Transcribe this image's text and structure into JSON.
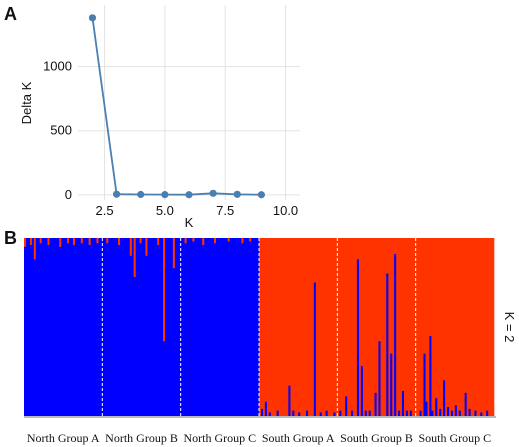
{
  "chart_data": [
    {
      "panel": "A",
      "type": "line",
      "xlabel": "K",
      "ylabel": "Delta K",
      "xlim": [
        1.4,
        10.6
      ],
      "ylim": [
        -40,
        1480
      ],
      "xticks": [
        2.5,
        5.0,
        7.5,
        10.0
      ],
      "xtick_labels": [
        "2.5",
        "5.0",
        "7.5",
        "10.0"
      ],
      "yticks": [
        0,
        500,
        1000
      ],
      "ytick_labels": [
        "0",
        "500",
        "1000"
      ],
      "grid": true,
      "x": [
        2,
        3,
        4,
        5,
        6,
        7,
        8,
        9
      ],
      "values": [
        1380,
        5,
        3,
        2,
        1,
        12,
        4,
        1
      ],
      "color": "#4a7fb0"
    },
    {
      "panel": "B",
      "type": "bar",
      "stacked": true,
      "k_label": "K = 2",
      "colors": {
        "cluster1": "#0000ff",
        "cluster2": "#ff3300"
      },
      "groups": [
        {
          "name": "North Group A",
          "n": 40,
          "dominant": "cluster1",
          "spikes": [
            [
              0,
              0.05
            ],
            [
              3,
              0.04
            ],
            [
              5,
              0.12
            ],
            [
              8,
              0.03
            ],
            [
              12,
              0.04
            ],
            [
              18,
              0.05
            ],
            [
              22,
              0.03
            ],
            [
              25,
              0.04
            ],
            [
              29,
              0.03
            ],
            [
              33,
              0.04
            ],
            [
              37,
              0.03
            ]
          ]
        },
        {
          "name": "North Group B",
          "n": 40,
          "dominant": "cluster1",
          "spikes": [
            [
              2,
              0.03
            ],
            [
              8,
              0.04
            ],
            [
              14,
              0.1
            ],
            [
              16,
              0.22
            ],
            [
              19,
              0.03
            ],
            [
              22,
              0.1
            ],
            [
              28,
              0.04
            ],
            [
              31,
              0.58
            ],
            [
              36,
              0.17
            ]
          ]
        },
        {
          "name": "North Group C",
          "n": 40,
          "dominant": "cluster1",
          "spikes": [
            [
              2,
              0.03
            ],
            [
              6,
              0.02
            ],
            [
              11,
              0.04
            ],
            [
              17,
              0.03
            ],
            [
              24,
              0.02
            ],
            [
              31,
              0.03
            ],
            [
              35,
              0.02
            ]
          ]
        },
        {
          "name": "South Group A",
          "n": 40,
          "dominant": "cluster2",
          "spikes": [
            [
              1,
              0.04
            ],
            [
              3,
              0.08
            ],
            [
              5,
              0.02
            ],
            [
              9,
              0.03
            ],
            [
              15,
              0.17
            ],
            [
              17,
              0.03
            ],
            [
              20,
              0.02
            ],
            [
              24,
              0.03
            ],
            [
              28,
              0.75
            ],
            [
              31,
              0.02
            ],
            [
              34,
              0.03
            ],
            [
              38,
              0.02
            ]
          ]
        },
        {
          "name": "South Group B",
          "n": 40,
          "dominant": "cluster2",
          "spikes": [
            [
              1,
              0.03
            ],
            [
              4,
              0.11
            ],
            [
              7,
              0.03
            ],
            [
              10,
              0.88
            ],
            [
              12,
              0.28
            ],
            [
              14,
              0.03
            ],
            [
              16,
              0.03
            ],
            [
              19,
              0.13
            ],
            [
              21,
              0.42
            ],
            [
              25,
              0.8
            ],
            [
              27,
              0.35
            ],
            [
              29,
              0.91
            ],
            [
              31,
              0.03
            ],
            [
              33,
              0.14
            ],
            [
              35,
              0.03
            ],
            [
              37,
              0.03
            ]
          ]
        },
        {
          "name": "South Group C",
          "n": 40,
          "dominant": "cluster2",
          "spikes": [
            [
              2,
              0.03
            ],
            [
              4,
              0.35
            ],
            [
              5,
              0.08
            ],
            [
              7,
              0.45
            ],
            [
              8,
              0.03
            ],
            [
              10,
              0.1
            ],
            [
              12,
              0.04
            ],
            [
              14,
              0.2
            ],
            [
              16,
              0.05
            ],
            [
              18,
              0.03
            ],
            [
              20,
              0.06
            ],
            [
              22,
              0.03
            ],
            [
              25,
              0.13
            ],
            [
              27,
              0.04
            ],
            [
              30,
              0.03
            ],
            [
              33,
              0.02
            ],
            [
              36,
              0.03
            ]
          ]
        }
      ]
    }
  ],
  "labels": {
    "panel_a": "A",
    "panel_b": "B"
  }
}
